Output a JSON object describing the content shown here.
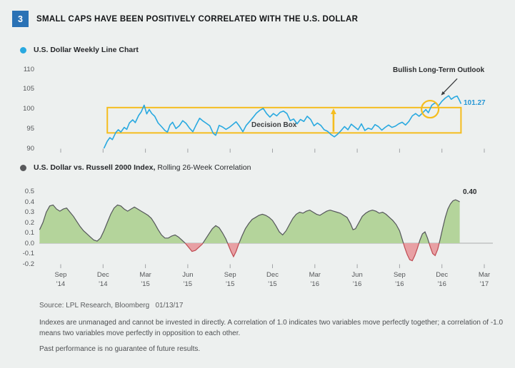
{
  "title_block": {
    "number": "3",
    "title": "SMALL CAPS HAVE BEEN POSITIVELY CORRELATED WITH THE U.S. DOLLAR"
  },
  "legend1": {
    "label": "U.S. Dollar Weekly Line Chart"
  },
  "legend2": {
    "bold": "U.S. Dollar vs. Russell 2000 Index,",
    "rest": " Rolling 26-Week Correlation"
  },
  "annotations": {
    "decision_box": "Decision Box",
    "bullish": "Bullish Long-Term Outlook",
    "dollar_end": "101.27",
    "corr_end": "0.40"
  },
  "footer": {
    "source": "Source: LPL Research, Bloomberg   01/13/17",
    "disclaimer": "Indexes are unmanaged and cannot be invested in directly. A correlation of 1.0 indicates two variables move perfectly together; a correlation of -1.0 means two variables move perfectly in opposition to each other.",
    "past": "Past performance is no guarantee of future results."
  },
  "x_axis": {
    "labels": [
      [
        "Sep",
        "'14"
      ],
      [
        "Dec",
        "'14"
      ],
      [
        "Mar",
        "'15"
      ],
      [
        "Jun",
        "'15"
      ],
      [
        "Sep",
        "'15"
      ],
      [
        "Dec",
        "'15"
      ],
      [
        "Mar",
        "'16"
      ],
      [
        "Jun",
        "'16"
      ],
      [
        "Sep",
        "'16"
      ],
      [
        "Dec",
        "'16"
      ],
      [
        "Mar",
        "'17"
      ]
    ]
  },
  "chart_data": [
    {
      "type": "line",
      "title": "U.S. Dollar Weekly Line Chart",
      "x_unit": "quarters since Sep 2014 (0=Sep '14, 1=Dec '14, ... 10=Mar '17)",
      "x_tick_labels": [
        "Sep '14",
        "Dec '14",
        "Mar '15",
        "Jun '15",
        "Sep '15",
        "Dec '15",
        "Mar '16",
        "Jun '16",
        "Sep '16",
        "Dec '16",
        "Mar '17"
      ],
      "ylim": [
        90,
        110
      ],
      "yticks": [
        "110",
        "105",
        "100",
        "95",
        "90"
      ],
      "line_color": "#29a9e0",
      "end_value": 101.27,
      "annotations": {
        "decision_box": {
          "label": "Decision Box",
          "q_start": 1.1,
          "q_end": 9.45,
          "value_low": 93.9,
          "value_high": 100.3,
          "color": "#f5bd1f"
        },
        "up_arrow": {
          "q": 6.44,
          "value_from": 94.2,
          "value_to": 100.1
        },
        "breakout_circle": {
          "q": 8.72,
          "value": 99.9
        },
        "outlook_label": "Bullish Long-Term Outlook",
        "outlook_arrow": {
          "from_q": 9.36,
          "from_value": 107.6,
          "to_q": 8.98,
          "to_value": 103.4
        }
      },
      "points": [
        [
          1.02,
          90.0
        ],
        [
          1.1,
          91.8
        ],
        [
          1.16,
          92.7
        ],
        [
          1.22,
          92.2
        ],
        [
          1.3,
          94.0
        ],
        [
          1.36,
          94.7
        ],
        [
          1.42,
          94.1
        ],
        [
          1.5,
          95.3
        ],
        [
          1.56,
          94.8
        ],
        [
          1.62,
          96.4
        ],
        [
          1.7,
          97.2
        ],
        [
          1.76,
          96.5
        ],
        [
          1.84,
          98.3
        ],
        [
          1.9,
          99.2
        ],
        [
          1.97,
          100.9
        ],
        [
          2.03,
          98.7
        ],
        [
          2.09,
          99.8
        ],
        [
          2.15,
          98.8
        ],
        [
          2.22,
          98.1
        ],
        [
          2.3,
          96.4
        ],
        [
          2.38,
          95.5
        ],
        [
          2.46,
          94.5
        ],
        [
          2.52,
          94.1
        ],
        [
          2.58,
          95.9
        ],
        [
          2.64,
          96.6
        ],
        [
          2.72,
          95.0
        ],
        [
          2.8,
          95.7
        ],
        [
          2.88,
          97.0
        ],
        [
          2.96,
          96.3
        ],
        [
          3.04,
          95.1
        ],
        [
          3.12,
          94.2
        ],
        [
          3.2,
          96.0
        ],
        [
          3.28,
          97.6
        ],
        [
          3.36,
          96.9
        ],
        [
          3.44,
          96.3
        ],
        [
          3.52,
          95.7
        ],
        [
          3.6,
          93.8
        ],
        [
          3.66,
          93.3
        ],
        [
          3.74,
          95.8
        ],
        [
          3.82,
          95.4
        ],
        [
          3.9,
          94.8
        ],
        [
          3.98,
          95.3
        ],
        [
          4.06,
          96.0
        ],
        [
          4.14,
          96.7
        ],
        [
          4.22,
          95.6
        ],
        [
          4.3,
          94.2
        ],
        [
          4.38,
          95.8
        ],
        [
          4.46,
          96.8
        ],
        [
          4.54,
          97.8
        ],
        [
          4.62,
          98.9
        ],
        [
          4.7,
          99.6
        ],
        [
          4.78,
          100.1
        ],
        [
          4.86,
          98.8
        ],
        [
          4.94,
          97.9
        ],
        [
          5.02,
          98.8
        ],
        [
          5.1,
          98.2
        ],
        [
          5.18,
          99.1
        ],
        [
          5.26,
          99.4
        ],
        [
          5.34,
          98.8
        ],
        [
          5.42,
          97.0
        ],
        [
          5.5,
          97.4
        ],
        [
          5.58,
          96.2
        ],
        [
          5.66,
          97.3
        ],
        [
          5.74,
          96.8
        ],
        [
          5.82,
          98.1
        ],
        [
          5.9,
          97.3
        ],
        [
          5.98,
          95.7
        ],
        [
          6.06,
          96.4
        ],
        [
          6.14,
          95.8
        ],
        [
          6.22,
          94.7
        ],
        [
          6.3,
          94.3
        ],
        [
          6.38,
          93.5
        ],
        [
          6.46,
          92.9
        ],
        [
          6.54,
          93.6
        ],
        [
          6.62,
          94.5
        ],
        [
          6.7,
          95.5
        ],
        [
          6.78,
          94.7
        ],
        [
          6.86,
          96.1
        ],
        [
          6.94,
          95.4
        ],
        [
          7.02,
          94.7
        ],
        [
          7.1,
          96.2
        ],
        [
          7.18,
          94.5
        ],
        [
          7.26,
          95.1
        ],
        [
          7.34,
          94.8
        ],
        [
          7.42,
          96.0
        ],
        [
          7.5,
          95.5
        ],
        [
          7.58,
          94.6
        ],
        [
          7.66,
          95.3
        ],
        [
          7.74,
          95.9
        ],
        [
          7.82,
          95.3
        ],
        [
          7.9,
          95.6
        ],
        [
          7.98,
          96.2
        ],
        [
          8.06,
          96.6
        ],
        [
          8.14,
          95.9
        ],
        [
          8.22,
          96.8
        ],
        [
          8.3,
          98.2
        ],
        [
          8.38,
          98.8
        ],
        [
          8.46,
          98.1
        ],
        [
          8.54,
          98.9
        ],
        [
          8.62,
          99.8
        ],
        [
          8.68,
          99.0
        ],
        [
          8.76,
          100.9
        ],
        [
          8.84,
          101.5
        ],
        [
          8.92,
          100.8
        ],
        [
          9.0,
          101.9
        ],
        [
          9.08,
          102.7
        ],
        [
          9.16,
          103.3
        ],
        [
          9.22,
          102.4
        ],
        [
          9.3,
          103.0
        ],
        [
          9.36,
          103.2
        ],
        [
          9.42,
          102.0
        ],
        [
          9.45,
          101.27
        ]
      ]
    },
    {
      "type": "area",
      "title": "U.S. Dollar vs. Russell 2000 Index, Rolling 26-Week Correlation",
      "x_unit": "quarters since Sep 2014 (0=Sep '14, 1=Dec '14, ... 10=Mar '17)",
      "x_tick_labels": [
        "Sep '14",
        "Dec '14",
        "Mar '15",
        "Jun '15",
        "Sep '15",
        "Dec '15",
        "Mar '16",
        "Jun '16",
        "Sep '16",
        "Dec '16",
        "Mar '17"
      ],
      "ylim": [
        -0.2,
        0.5
      ],
      "yticks": [
        "0.5",
        "0.4",
        "0.3",
        "0.2",
        "0.1",
        "0.0",
        "-0.1",
        "-0.2"
      ],
      "positive_color": "#b4d49b",
      "negative_color": "#e8a0a4",
      "line_color_positive": "#54565a",
      "line_color_negative": "#bf4a52",
      "end_value": 0.4,
      "points": [
        [
          -0.5,
          0.13
        ],
        [
          -0.42,
          0.2
        ],
        [
          -0.34,
          0.3
        ],
        [
          -0.26,
          0.36
        ],
        [
          -0.18,
          0.37
        ],
        [
          -0.1,
          0.33
        ],
        [
          -0.02,
          0.31
        ],
        [
          0.06,
          0.33
        ],
        [
          0.14,
          0.34
        ],
        [
          0.22,
          0.3
        ],
        [
          0.3,
          0.26
        ],
        [
          0.38,
          0.21
        ],
        [
          0.46,
          0.16
        ],
        [
          0.54,
          0.12
        ],
        [
          0.62,
          0.09
        ],
        [
          0.7,
          0.06
        ],
        [
          0.78,
          0.03
        ],
        [
          0.86,
          0.02
        ],
        [
          0.94,
          0.05
        ],
        [
          1.02,
          0.12
        ],
        [
          1.1,
          0.2
        ],
        [
          1.18,
          0.28
        ],
        [
          1.26,
          0.34
        ],
        [
          1.34,
          0.37
        ],
        [
          1.42,
          0.36
        ],
        [
          1.5,
          0.33
        ],
        [
          1.58,
          0.31
        ],
        [
          1.66,
          0.33
        ],
        [
          1.74,
          0.35
        ],
        [
          1.82,
          0.33
        ],
        [
          1.9,
          0.31
        ],
        [
          1.98,
          0.29
        ],
        [
          2.06,
          0.27
        ],
        [
          2.14,
          0.24
        ],
        [
          2.22,
          0.19
        ],
        [
          2.3,
          0.13
        ],
        [
          2.38,
          0.08
        ],
        [
          2.46,
          0.05
        ],
        [
          2.54,
          0.05
        ],
        [
          2.62,
          0.07
        ],
        [
          2.7,
          0.08
        ],
        [
          2.78,
          0.06
        ],
        [
          2.86,
          0.03
        ],
        [
          2.94,
          0.0
        ],
        [
          3.02,
          -0.04
        ],
        [
          3.1,
          -0.08
        ],
        [
          3.18,
          -0.07
        ],
        [
          3.26,
          -0.04
        ],
        [
          3.34,
          -0.01
        ],
        [
          3.42,
          0.04
        ],
        [
          3.5,
          0.09
        ],
        [
          3.58,
          0.14
        ],
        [
          3.66,
          0.17
        ],
        [
          3.74,
          0.15
        ],
        [
          3.82,
          0.1
        ],
        [
          3.9,
          0.04
        ],
        [
          3.96,
          -0.02
        ],
        [
          4.02,
          -0.08
        ],
        [
          4.08,
          -0.13
        ],
        [
          4.14,
          -0.08
        ],
        [
          4.2,
          -0.01
        ],
        [
          4.28,
          0.07
        ],
        [
          4.36,
          0.14
        ],
        [
          4.44,
          0.19
        ],
        [
          4.52,
          0.23
        ],
        [
          4.6,
          0.25
        ],
        [
          4.68,
          0.27
        ],
        [
          4.76,
          0.28
        ],
        [
          4.84,
          0.27
        ],
        [
          4.92,
          0.25
        ],
        [
          5.0,
          0.22
        ],
        [
          5.08,
          0.17
        ],
        [
          5.16,
          0.11
        ],
        [
          5.24,
          0.08
        ],
        [
          5.32,
          0.12
        ],
        [
          5.4,
          0.18
        ],
        [
          5.48,
          0.24
        ],
        [
          5.56,
          0.28
        ],
        [
          5.64,
          0.3
        ],
        [
          5.72,
          0.29
        ],
        [
          5.8,
          0.31
        ],
        [
          5.88,
          0.32
        ],
        [
          5.96,
          0.3
        ],
        [
          6.04,
          0.28
        ],
        [
          6.12,
          0.27
        ],
        [
          6.2,
          0.29
        ],
        [
          6.28,
          0.31
        ],
        [
          6.36,
          0.32
        ],
        [
          6.44,
          0.31
        ],
        [
          6.52,
          0.3
        ],
        [
          6.6,
          0.29
        ],
        [
          6.68,
          0.27
        ],
        [
          6.76,
          0.25
        ],
        [
          6.84,
          0.19
        ],
        [
          6.9,
          0.13
        ],
        [
          6.96,
          0.14
        ],
        [
          7.04,
          0.2
        ],
        [
          7.12,
          0.26
        ],
        [
          7.2,
          0.29
        ],
        [
          7.28,
          0.31
        ],
        [
          7.36,
          0.32
        ],
        [
          7.44,
          0.31
        ],
        [
          7.52,
          0.29
        ],
        [
          7.6,
          0.3
        ],
        [
          7.68,
          0.28
        ],
        [
          7.76,
          0.25
        ],
        [
          7.84,
          0.22
        ],
        [
          7.92,
          0.18
        ],
        [
          8.0,
          0.12
        ],
        [
          8.06,
          0.04
        ],
        [
          8.12,
          -0.04
        ],
        [
          8.18,
          -0.11
        ],
        [
          8.24,
          -0.16
        ],
        [
          8.3,
          -0.17
        ],
        [
          8.36,
          -0.12
        ],
        [
          8.42,
          -0.05
        ],
        [
          8.48,
          0.03
        ],
        [
          8.54,
          0.09
        ],
        [
          8.6,
          0.11
        ],
        [
          8.66,
          0.05
        ],
        [
          8.72,
          -0.03
        ],
        [
          8.78,
          -0.1
        ],
        [
          8.84,
          -0.12
        ],
        [
          8.9,
          -0.06
        ],
        [
          8.96,
          0.04
        ],
        [
          9.02,
          0.15
        ],
        [
          9.08,
          0.25
        ],
        [
          9.14,
          0.33
        ],
        [
          9.2,
          0.38
        ],
        [
          9.26,
          0.41
        ],
        [
          9.32,
          0.42
        ],
        [
          9.38,
          0.41
        ],
        [
          9.42,
          0.4
        ]
      ]
    }
  ]
}
